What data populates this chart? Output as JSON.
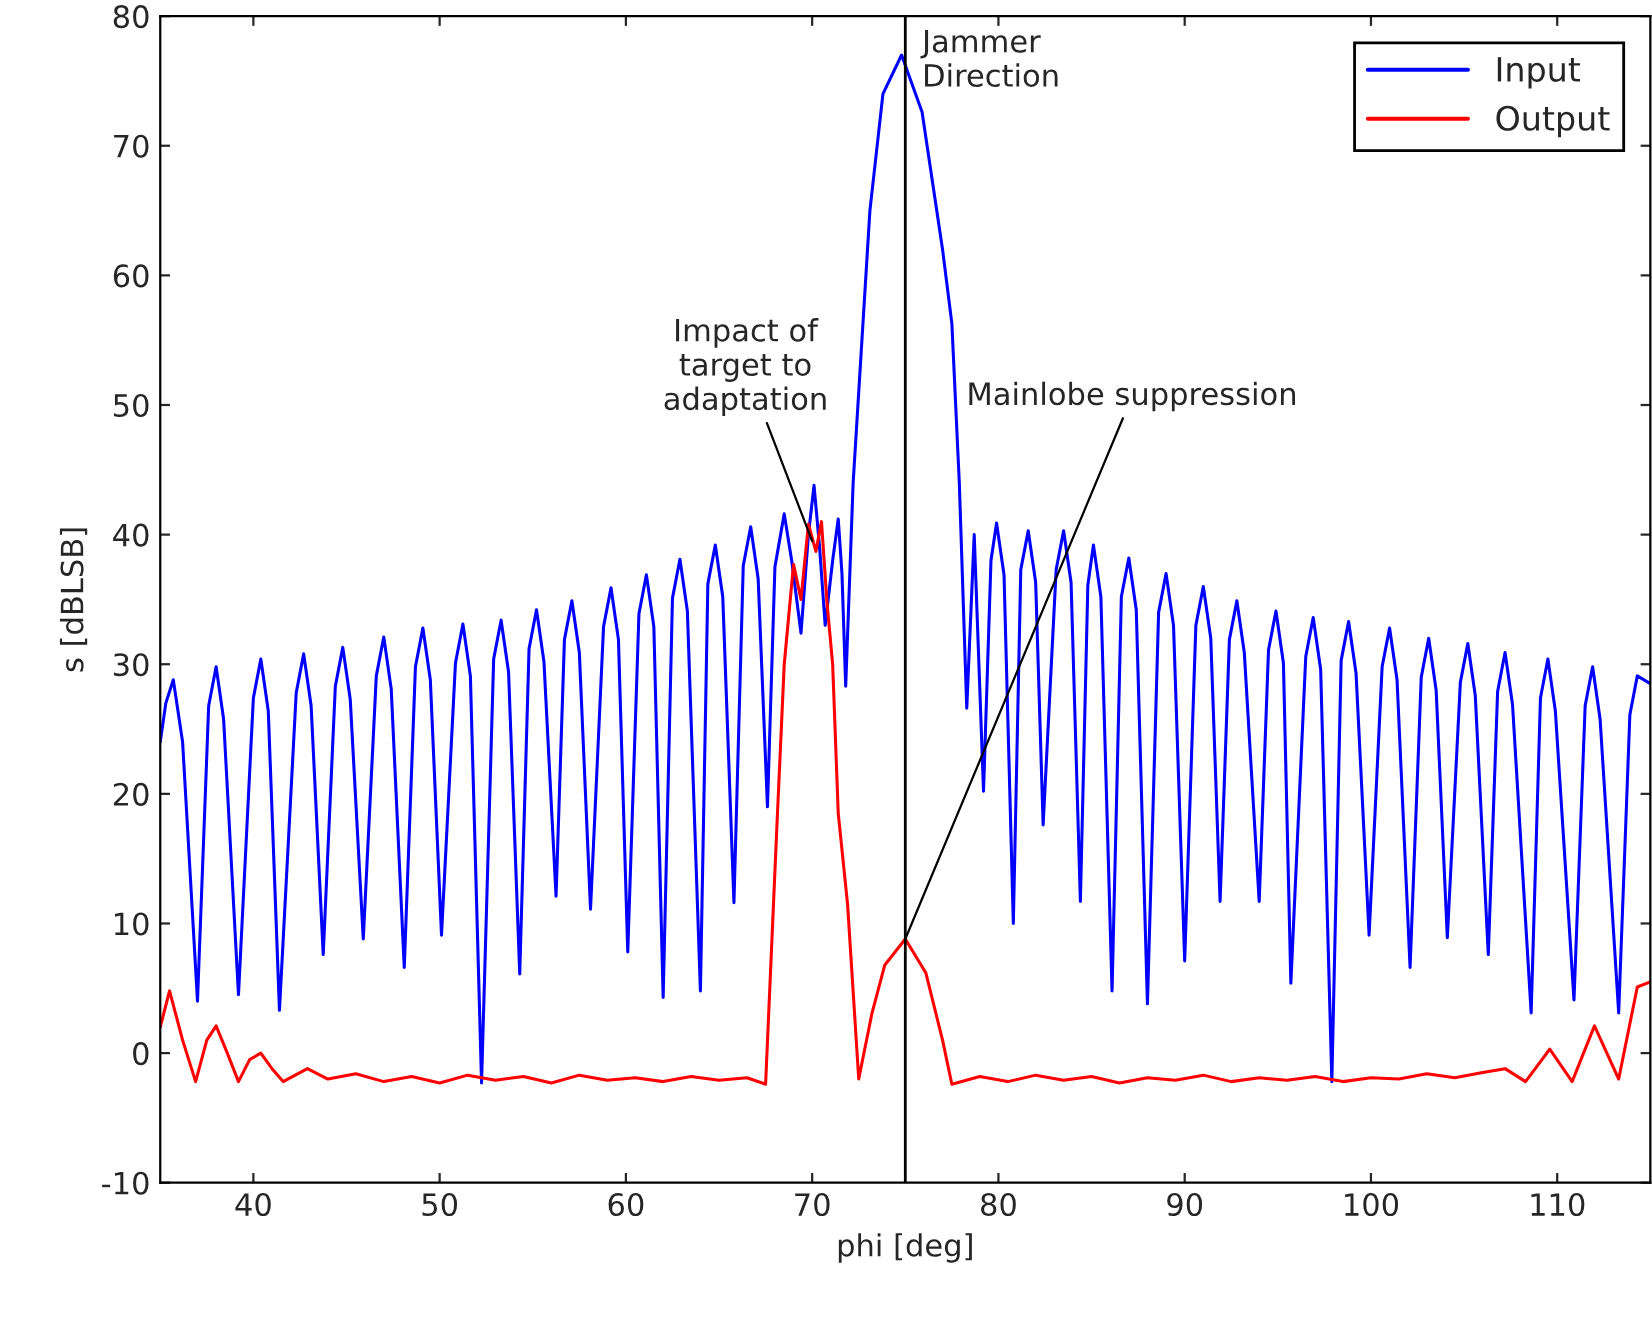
{
  "chart_data": {
    "type": "line",
    "xlabel": "phi [deg]",
    "ylabel": "s [dBLSB]",
    "xlim": [
      35,
      115
    ],
    "ylim": [
      -10,
      80
    ],
    "xticks": [
      40,
      50,
      60,
      70,
      80,
      90,
      100,
      110
    ],
    "yticks": [
      -10,
      0,
      10,
      20,
      30,
      40,
      50,
      60,
      70,
      80
    ],
    "grid": false,
    "legend": "top right",
    "marker": "none",
    "line_style": "solid",
    "series": [
      {
        "name": "Input",
        "color": "#0000ff",
        "x": [
          35,
          35.3,
          35.7,
          36.2,
          37.0,
          37.6,
          38.0,
          38.4,
          39.2,
          40.0,
          40.4,
          40.8,
          41.4,
          42.3,
          42.7,
          43.1,
          43.75,
          44.4,
          44.8,
          45.2,
          45.9,
          46.6,
          47.0,
          47.4,
          48.1,
          48.7,
          49.1,
          49.5,
          50.1,
          50.85,
          51.25,
          51.65,
          52.25,
          52.9,
          53.3,
          53.7,
          54.3,
          54.8,
          55.2,
          55.6,
          56.25,
          56.7,
          57.1,
          57.5,
          58.1,
          58.8,
          59.2,
          59.6,
          60.1,
          60.7,
          61.1,
          61.5,
          62.0,
          62.5,
          62.9,
          63.3,
          64.0,
          64.4,
          64.8,
          65.2,
          65.8,
          66.3,
          66.7,
          67.1,
          67.6,
          68.0,
          68.5,
          68.9,
          69.4,
          69.8,
          70.1,
          70.4,
          70.7,
          71.1,
          71.4,
          71.6,
          71.8,
          72.2,
          73.1,
          73.8,
          74.8,
          75.9,
          77.0,
          77.5,
          77.9,
          78.3,
          78.7,
          79.2,
          79.6,
          79.9,
          80.3,
          80.8,
          81.2,
          81.6,
          82.0,
          82.4,
          83.1,
          83.5,
          83.9,
          84.4,
          84.8,
          85.1,
          85.5,
          86.1,
          86.6,
          87.0,
          87.4,
          88.0,
          88.6,
          89.0,
          89.4,
          90.0,
          90.6,
          91.0,
          91.4,
          91.9,
          92.4,
          92.8,
          93.2,
          94.0,
          94.5,
          94.9,
          95.3,
          95.7,
          96.5,
          96.9,
          97.3,
          97.9,
          98.4,
          98.8,
          99.2,
          99.9,
          100.6,
          101.0,
          101.4,
          102.1,
          102.7,
          103.1,
          103.5,
          104.1,
          104.8,
          105.2,
          105.6,
          106.3,
          106.8,
          107.2,
          107.6,
          108.6,
          109.1,
          109.5,
          109.9,
          110.9,
          111.5,
          111.9,
          112.3,
          113.3,
          113.9,
          114.3,
          115
        ],
        "values": [
          24,
          27,
          28.8,
          24,
          4.0,
          26.8,
          29.8,
          25.8,
          4.5,
          27.4,
          30.4,
          26.4,
          3.3,
          27.8,
          30.8,
          26.8,
          7.6,
          28.3,
          31.3,
          27.3,
          8.8,
          29.1,
          32.1,
          28.1,
          6.6,
          29.8,
          32.8,
          28.8,
          9.1,
          30.1,
          33.1,
          29.1,
          -2.3,
          30.4,
          33.4,
          29.4,
          6.1,
          31.2,
          34.2,
          30.2,
          12.1,
          31.9,
          34.9,
          30.9,
          11.1,
          32.9,
          35.9,
          31.9,
          7.8,
          33.9,
          36.9,
          32.9,
          4.3,
          35.1,
          38.1,
          34.1,
          4.8,
          36.2,
          39.2,
          35.2,
          11.6,
          37.6,
          40.6,
          36.6,
          19.0,
          37.5,
          41.6,
          38,
          32.4,
          40,
          43.8,
          39,
          33,
          38,
          41.2,
          37,
          28.3,
          44,
          65,
          74,
          77,
          72.6,
          62,
          56.3,
          44,
          26.6,
          40,
          20.2,
          38,
          40.9,
          36.9,
          10,
          37.3,
          40.3,
          36.3,
          17.6,
          37.3,
          40.3,
          36.3,
          11.7,
          36.1,
          39.2,
          35.2,
          4.8,
          35.2,
          38.2,
          34.2,
          3.8,
          34.0,
          37.0,
          33.0,
          7.1,
          33.0,
          36.0,
          32.0,
          11.7,
          31.9,
          34.9,
          30.9,
          11.7,
          31.1,
          34.1,
          30.1,
          5.4,
          30.6,
          33.6,
          29.6,
          -2.2,
          30.3,
          33.3,
          29.3,
          9.1,
          29.8,
          32.8,
          28.8,
          6.6,
          29.0,
          32.0,
          28.0,
          8.9,
          28.6,
          31.6,
          27.6,
          7.6,
          27.9,
          30.9,
          26.9,
          3.1,
          27.4,
          30.4,
          26.4,
          4.1,
          26.8,
          29.8,
          25.8,
          3.1,
          26.1,
          29.1,
          28.5
        ]
      },
      {
        "name": "Output",
        "color": "#ff0000",
        "x": [
          35,
          35.5,
          36.2,
          36.9,
          37.5,
          38.0,
          38.6,
          39.2,
          39.8,
          40.4,
          41.0,
          41.6,
          42.9,
          44,
          45.5,
          47,
          48.5,
          50,
          51.5,
          53,
          54.5,
          56,
          57.5,
          59,
          60.5,
          62,
          63.5,
          65,
          66.5,
          67.5,
          68.1,
          68.5,
          69.0,
          69.4,
          69.8,
          70.2,
          70.5,
          70.8,
          71.1,
          71.4,
          71.9,
          72.5,
          73.2,
          73.9,
          75.0,
          76.1,
          77.0,
          77.5,
          79,
          80.5,
          82,
          83.5,
          85,
          86.5,
          88,
          89.5,
          91,
          92.5,
          94,
          95.5,
          97,
          98.5,
          100,
          101.5,
          103,
          104.5,
          106,
          107.2,
          108.3,
          109.6,
          110.8,
          112.0,
          113.3,
          114.3,
          115
        ],
        "values": [
          2,
          4.8,
          1,
          -2.2,
          1,
          2.1,
          0,
          -2.2,
          -0.5,
          0,
          -1.2,
          -2.2,
          -1.2,
          -2,
          -1.6,
          -2.2,
          -1.8,
          -2.3,
          -1.7,
          -2.1,
          -1.8,
          -2.3,
          -1.7,
          -2.1,
          -1.9,
          -2.2,
          -1.8,
          -2.1,
          -1.9,
          -2.4,
          17.3,
          30,
          37.7,
          35,
          40.8,
          38.7,
          41,
          34.7,
          30,
          18.5,
          11.5,
          -2,
          3,
          6.8,
          8.8,
          6.2,
          1,
          -2.4,
          -1.8,
          -2.2,
          -1.7,
          -2.1,
          -1.8,
          -2.3,
          -1.9,
          -2.1,
          -1.7,
          -2.2,
          -1.9,
          -2.1,
          -1.8,
          -2.2,
          -1.9,
          -2.0,
          -1.6,
          -1.9,
          -1.5,
          -1.2,
          -2.2,
          0.3,
          -2.2,
          2.1,
          -2,
          5.1,
          5.5
        ]
      }
    ],
    "ref_lines": [
      {
        "axis": "x",
        "value": 75,
        "label": "Jammer\nDirection",
        "color": "#000000",
        "line_style": "solid"
      }
    ],
    "annotations": [
      {
        "text": "Impact of\ntarget to\nadaptation",
        "x": 70,
        "y": 39.5
      },
      {
        "text": "Mainlobe suppression",
        "x": 75.0,
        "y": 8.8
      }
    ]
  }
}
